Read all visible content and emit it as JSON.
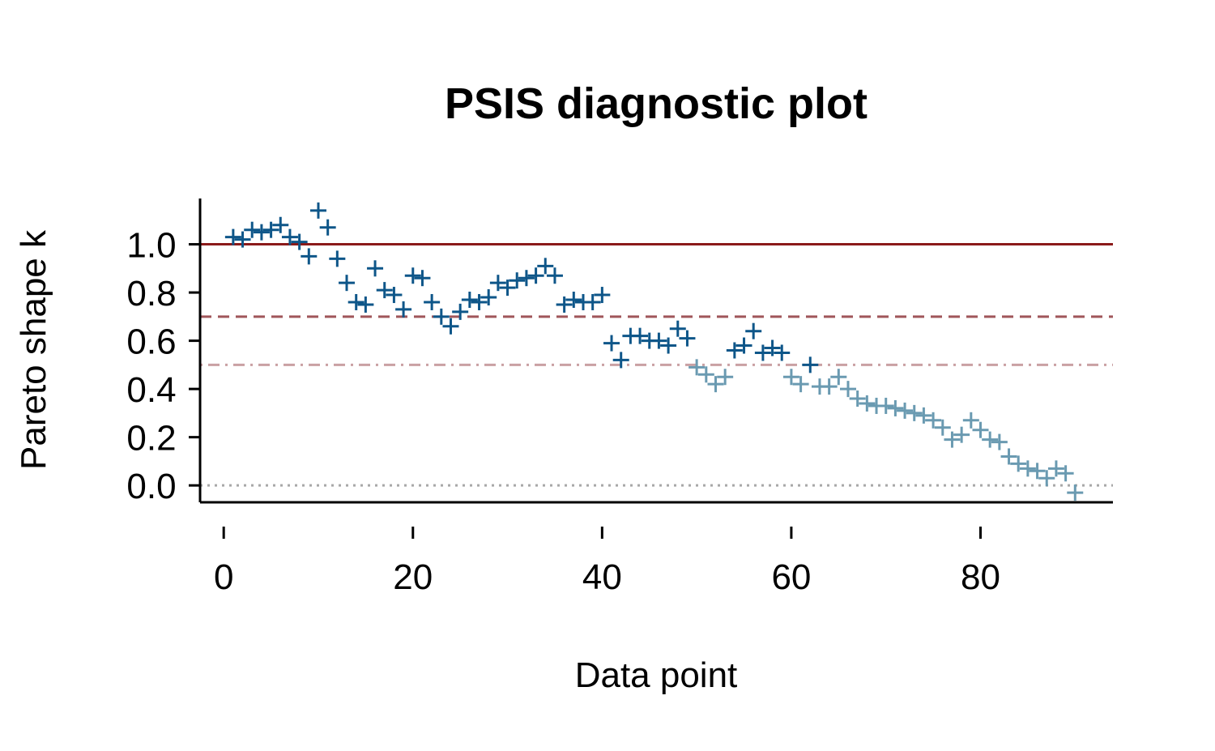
{
  "chart_data": {
    "type": "scatter",
    "title": "PSIS diagnostic plot",
    "xlabel": "Data point",
    "ylabel": "Pareto shape k",
    "xlim": [
      -2.5,
      94
    ],
    "ylim": [
      -0.07,
      1.19
    ],
    "x_ticks": [
      0,
      20,
      40,
      60,
      80
    ],
    "y_ticks": [
      0.0,
      0.2,
      0.4,
      0.6,
      0.8,
      1.0
    ],
    "y_tick_labels": [
      "0.0",
      "0.2",
      "0.4",
      "0.6",
      "0.8",
      "1.0"
    ],
    "marker": "plus",
    "grid": false,
    "legend": "none",
    "reference_lines": [
      {
        "y": 1.0,
        "style": "solid",
        "color": "#8b1a1a"
      },
      {
        "y": 0.7,
        "style": "dashed",
        "color": "#a0565a"
      },
      {
        "y": 0.5,
        "style": "dotdash",
        "color": "#c9a0a3"
      },
      {
        "y": 0.0,
        "style": "dotted",
        "color": "#a8a8a8"
      }
    ],
    "colors": {
      "high_k": "#0e5689",
      "low_k": "#6a9ab1",
      "threshold": 0.5
    },
    "x": [
      1,
      2,
      3,
      4,
      5,
      6,
      7,
      8,
      9,
      10,
      11,
      12,
      13,
      14,
      15,
      16,
      17,
      18,
      19,
      20,
      21,
      22,
      23,
      24,
      25,
      26,
      27,
      28,
      29,
      30,
      31,
      32,
      33,
      34,
      35,
      36,
      37,
      38,
      39,
      40,
      41,
      42,
      43,
      44,
      45,
      46,
      47,
      48,
      49,
      50,
      51,
      52,
      53,
      54,
      55,
      56,
      57,
      58,
      59,
      60,
      61,
      62,
      63,
      64,
      65,
      66,
      67,
      68,
      69,
      70,
      71,
      72,
      73,
      74,
      75,
      76,
      77,
      78,
      79,
      80,
      81,
      82,
      83,
      84,
      85,
      86,
      87,
      88,
      89,
      90
    ],
    "y": [
      1.03,
      1.02,
      1.06,
      1.05,
      1.06,
      1.08,
      1.03,
      1.01,
      0.95,
      1.14,
      1.07,
      0.94,
      0.84,
      0.76,
      0.75,
      0.9,
      0.81,
      0.79,
      0.73,
      0.87,
      0.86,
      0.76,
      0.7,
      0.66,
      0.72,
      0.77,
      0.76,
      0.78,
      0.84,
      0.82,
      0.85,
      0.86,
      0.87,
      0.91,
      0.87,
      0.75,
      0.77,
      0.76,
      0.76,
      0.79,
      0.59,
      0.52,
      0.62,
      0.62,
      0.6,
      0.6,
      0.58,
      0.65,
      0.61,
      0.49,
      0.46,
      0.42,
      0.45,
      0.56,
      0.58,
      0.64,
      0.55,
      0.57,
      0.55,
      0.45,
      0.42,
      0.5,
      0.41,
      0.41,
      0.45,
      0.4,
      0.36,
      0.34,
      0.33,
      0.33,
      0.32,
      0.31,
      0.3,
      0.29,
      0.27,
      0.24,
      0.19,
      0.21,
      0.27,
      0.23,
      0.19,
      0.18,
      0.12,
      0.09,
      0.07,
      0.06,
      0.03,
      0.07,
      0.05,
      -0.03
    ]
  }
}
